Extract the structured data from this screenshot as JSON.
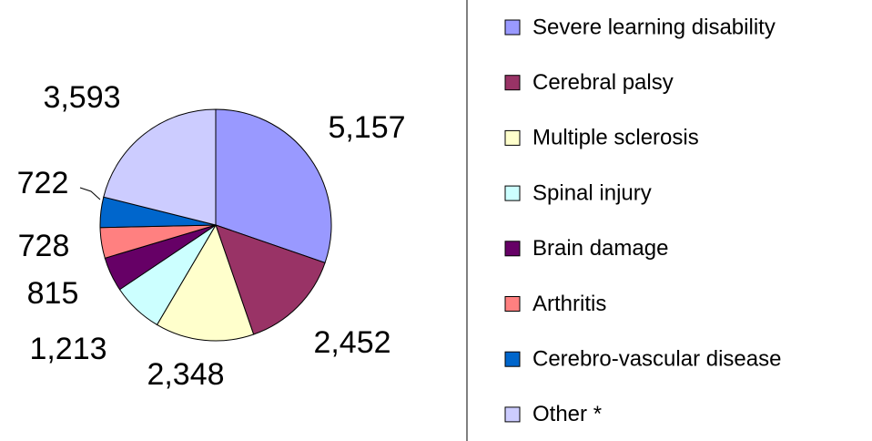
{
  "chart_data": {
    "type": "pie",
    "categories": [
      "Severe learning disability",
      "Cerebral palsy",
      "Multiple sclerosis",
      "Spinal injury",
      "Brain damage",
      "Arthritis",
      "Cerebro-vascular disease",
      "Other *"
    ],
    "values": [
      5157,
      2452,
      2348,
      1213,
      815,
      728,
      722,
      3593
    ],
    "value_labels": [
      "5,157",
      "2,452",
      "2,348",
      "1,213",
      "815",
      "728",
      "722",
      "3,593"
    ],
    "colors": [
      "#9999ff",
      "#993366",
      "#ffffcc",
      "#ccffff",
      "#660066",
      "#ff8080",
      "#0066cc",
      "#ccccff"
    ],
    "legend": "right"
  }
}
